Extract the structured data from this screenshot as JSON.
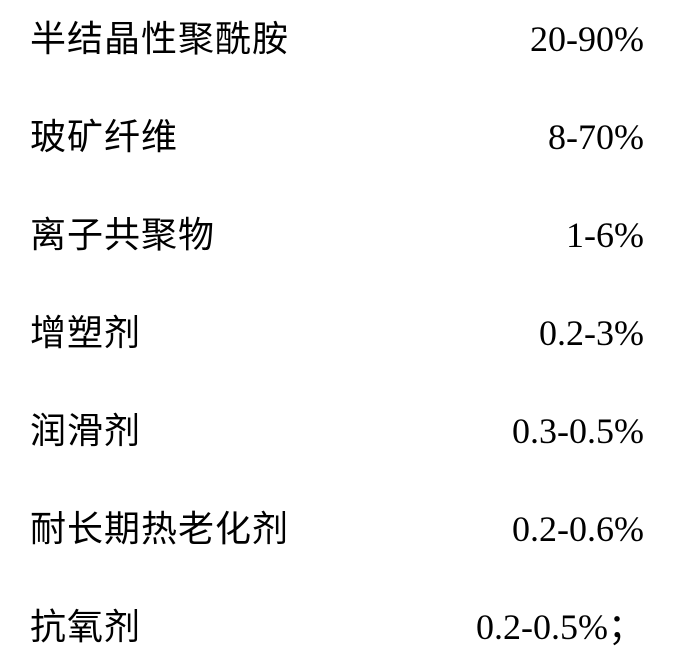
{
  "composition": {
    "rows": [
      {
        "label": "半结晶性聚酰胺",
        "value": "20-90%"
      },
      {
        "label": "玻矿纤维",
        "value": "8-70%"
      },
      {
        "label": "离子共聚物",
        "value": "1-6%"
      },
      {
        "label": "增塑剂",
        "value": "0.2-3%"
      },
      {
        "label": "润滑剂",
        "value": "0.3-0.5%"
      },
      {
        "label": "耐长期热老化剂",
        "value": "0.2-0.6%"
      },
      {
        "label": "抗氧剂",
        "value": "0.2-0.5%；"
      }
    ],
    "label_fontsize": 36,
    "value_fontsize": 36,
    "text_color": "#000000",
    "background_color": "#ffffff",
    "row_spacing": 46
  }
}
